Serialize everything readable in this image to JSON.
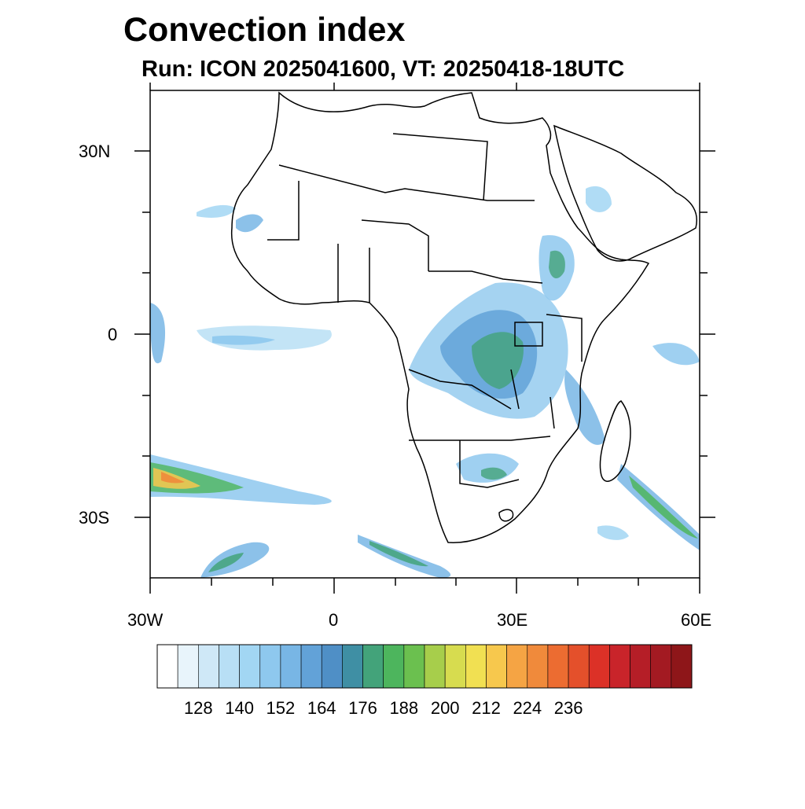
{
  "title": "Convection index",
  "subtitle": "Run: ICON 2025041600,  VT: 20250418-18UTC",
  "axes": {
    "lat_labels": [
      "30N",
      "0",
      "30S"
    ],
    "lon_labels": [
      "30W",
      "0",
      "30E",
      "60E"
    ]
  },
  "colorbar": {
    "tick_labels": [
      "128",
      "140",
      "152",
      "164",
      "176",
      "188",
      "200",
      "212",
      "224",
      "236"
    ],
    "colors": [
      "#ffffff",
      "#e8f4fb",
      "#cfe8f7",
      "#b8dff5",
      "#a2d6f3",
      "#8ec8ee",
      "#78b6e5",
      "#62a2d8",
      "#4f8fc6",
      "#3f8fa4",
      "#43a37a",
      "#4db55d",
      "#6bc04f",
      "#a7ce4b",
      "#d7dc4f",
      "#f1e052",
      "#f7c84d",
      "#f5a444",
      "#f08a3b",
      "#ec6c31",
      "#e4502b",
      "#dc3127",
      "#c9242a",
      "#b51e27",
      "#a31a22",
      "#8e1619"
    ]
  },
  "map": {
    "coastline_color": "#000000",
    "features": [
      "Africa outline",
      "Arabian Peninsula",
      "Madagascar",
      "country borders"
    ]
  }
}
